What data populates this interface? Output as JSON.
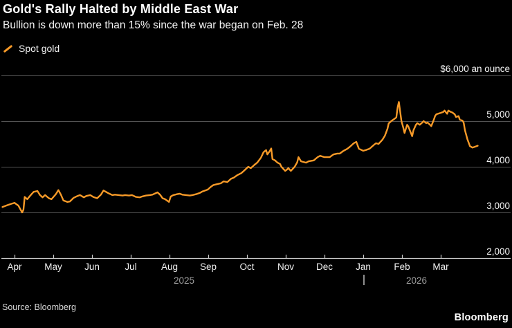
{
  "header": {
    "title": "Gold's Rally Halted by Middle East War",
    "subtitle": "Bullion is down more than 15% since the war began on Feb. 28"
  },
  "legend": {
    "label": "Spot gold"
  },
  "footer": {
    "source": "Source: Bloomberg",
    "brand": "Bloomberg"
  },
  "colors": {
    "background": "#000000",
    "line": "#F79A28",
    "grid": "#545454",
    "axis": "#C9C9C9",
    "title_text": "#FFFFFF",
    "year_text": "#9E9E9E"
  },
  "chart_data": {
    "type": "line",
    "title": "Gold's Rally Halted by Middle East War",
    "subtitle": "Bullion is down more than 15% since the war began on Feb. 28",
    "ylabel": "$6,000 an ounce",
    "y_range": [
      2000,
      6100
    ],
    "grid": true,
    "legend_position": "top-left",
    "y_ticks": [
      {
        "value": 2000,
        "label": "2,000"
      },
      {
        "value": 3000,
        "label": "3,000"
      },
      {
        "value": 4000,
        "label": "4,000"
      },
      {
        "value": 5000,
        "label": "5,000"
      },
      {
        "value": 6000,
        "label": "$6,000 an ounce"
      }
    ],
    "x_months": [
      "Apr",
      "May",
      "Jun",
      "Jul",
      "Aug",
      "Sep",
      "Oct",
      "Nov",
      "Dec",
      "Jan",
      "Feb",
      "Mar"
    ],
    "x_years": {
      "first": "2025",
      "second": "2026"
    },
    "series": [
      {
        "name": "Spot gold",
        "color": "#F79A28",
        "points": [
          [
            "2025-03-22",
            3120
          ],
          [
            "2025-03-26",
            3160
          ],
          [
            "2025-03-29",
            3190
          ],
          [
            "2025-04-01",
            3210
          ],
          [
            "2025-04-04",
            3150
          ],
          [
            "2025-04-07",
            3000
          ],
          [
            "2025-04-08",
            3060
          ],
          [
            "2025-04-09",
            3340
          ],
          [
            "2025-04-11",
            3290
          ],
          [
            "2025-04-14",
            3390
          ],
          [
            "2025-04-16",
            3450
          ],
          [
            "2025-04-19",
            3470
          ],
          [
            "2025-04-21",
            3380
          ],
          [
            "2025-04-23",
            3330
          ],
          [
            "2025-04-25",
            3380
          ],
          [
            "2025-04-28",
            3310
          ],
          [
            "2025-04-30",
            3290
          ],
          [
            "2025-05-03",
            3400
          ],
          [
            "2025-05-05",
            3490
          ],
          [
            "2025-05-07",
            3390
          ],
          [
            "2025-05-09",
            3260
          ],
          [
            "2025-05-12",
            3230
          ],
          [
            "2025-05-14",
            3240
          ],
          [
            "2025-05-17",
            3320
          ],
          [
            "2025-05-20",
            3360
          ],
          [
            "2025-05-22",
            3380
          ],
          [
            "2025-05-25",
            3330
          ],
          [
            "2025-05-27",
            3360
          ],
          [
            "2025-05-30",
            3380
          ],
          [
            "2025-06-02",
            3340
          ],
          [
            "2025-06-05",
            3310
          ],
          [
            "2025-06-08",
            3390
          ],
          [
            "2025-06-10",
            3480
          ],
          [
            "2025-06-12",
            3450
          ],
          [
            "2025-06-14",
            3420
          ],
          [
            "2025-06-17",
            3380
          ],
          [
            "2025-06-19",
            3390
          ],
          [
            "2025-06-22",
            3380
          ],
          [
            "2025-06-25",
            3370
          ],
          [
            "2025-06-27",
            3380
          ],
          [
            "2025-06-30",
            3370
          ],
          [
            "2025-07-02",
            3380
          ],
          [
            "2025-07-05",
            3340
          ],
          [
            "2025-07-08",
            3330
          ],
          [
            "2025-07-10",
            3350
          ],
          [
            "2025-07-13",
            3370
          ],
          [
            "2025-07-16",
            3380
          ],
          [
            "2025-07-18",
            3390
          ],
          [
            "2025-07-22",
            3440
          ],
          [
            "2025-07-24",
            3390
          ],
          [
            "2025-07-26",
            3310
          ],
          [
            "2025-07-28",
            3290
          ],
          [
            "2025-07-31",
            3230
          ],
          [
            "2025-08-02",
            3350
          ],
          [
            "2025-08-04",
            3380
          ],
          [
            "2025-08-07",
            3400
          ],
          [
            "2025-08-09",
            3410
          ],
          [
            "2025-08-11",
            3390
          ],
          [
            "2025-08-14",
            3380
          ],
          [
            "2025-08-17",
            3370
          ],
          [
            "2025-08-19",
            3380
          ],
          [
            "2025-08-22",
            3400
          ],
          [
            "2025-08-25",
            3430
          ],
          [
            "2025-08-27",
            3460
          ],
          [
            "2025-08-31",
            3500
          ],
          [
            "2025-09-03",
            3560
          ],
          [
            "2025-09-05",
            3600
          ],
          [
            "2025-09-08",
            3620
          ],
          [
            "2025-09-11",
            3640
          ],
          [
            "2025-09-13",
            3680
          ],
          [
            "2025-09-16",
            3665
          ],
          [
            "2025-09-19",
            3740
          ],
          [
            "2025-09-21",
            3760
          ],
          [
            "2025-09-24",
            3820
          ],
          [
            "2025-09-27",
            3860
          ],
          [
            "2025-09-29",
            3910
          ],
          [
            "2025-10-02",
            4000
          ],
          [
            "2025-10-04",
            3970
          ],
          [
            "2025-10-07",
            4045
          ],
          [
            "2025-10-09",
            4090
          ],
          [
            "2025-10-12",
            4200
          ],
          [
            "2025-10-14",
            4320
          ],
          [
            "2025-10-16",
            4365
          ],
          [
            "2025-10-17",
            4270
          ],
          [
            "2025-10-19",
            4350
          ],
          [
            "2025-10-20",
            4400
          ],
          [
            "2025-10-21",
            4170
          ],
          [
            "2025-10-23",
            4140
          ],
          [
            "2025-10-25",
            4090
          ],
          [
            "2025-10-27",
            4060
          ],
          [
            "2025-10-28",
            4000
          ],
          [
            "2025-10-31",
            3910
          ],
          [
            "2025-11-02",
            3940
          ],
          [
            "2025-11-03",
            3970
          ],
          [
            "2025-11-05",
            3910
          ],
          [
            "2025-11-08",
            4000
          ],
          [
            "2025-11-10",
            4100
          ],
          [
            "2025-11-11",
            4210
          ],
          [
            "2025-11-13",
            4120
          ],
          [
            "2025-11-17",
            4090
          ],
          [
            "2025-11-19",
            4120
          ],
          [
            "2025-11-23",
            4140
          ],
          [
            "2025-11-26",
            4210
          ],
          [
            "2025-11-28",
            4240
          ],
          [
            "2025-12-01",
            4210
          ],
          [
            "2025-12-05",
            4210
          ],
          [
            "2025-12-08",
            4270
          ],
          [
            "2025-12-11",
            4290
          ],
          [
            "2025-12-13",
            4290
          ],
          [
            "2025-12-16",
            4350
          ],
          [
            "2025-12-19",
            4395
          ],
          [
            "2025-12-21",
            4440
          ],
          [
            "2025-12-24",
            4515
          ],
          [
            "2025-12-26",
            4545
          ],
          [
            "2025-12-28",
            4395
          ],
          [
            "2026-01-01",
            4350
          ],
          [
            "2026-01-03",
            4365
          ],
          [
            "2026-01-06",
            4395
          ],
          [
            "2026-01-09",
            4470
          ],
          [
            "2026-01-11",
            4515
          ],
          [
            "2026-01-13",
            4500
          ],
          [
            "2026-01-16",
            4590
          ],
          [
            "2026-01-18",
            4680
          ],
          [
            "2026-01-20",
            4830
          ],
          [
            "2026-01-21",
            4950
          ],
          [
            "2026-01-23",
            5000
          ],
          [
            "2026-01-25",
            5040
          ],
          [
            "2026-01-27",
            5080
          ],
          [
            "2026-01-28",
            5300
          ],
          [
            "2026-01-29",
            5420
          ],
          [
            "2026-01-31",
            5000
          ],
          [
            "2026-02-02",
            4860
          ],
          [
            "2026-02-03",
            4740
          ],
          [
            "2026-02-05",
            4920
          ],
          [
            "2026-02-06",
            4880
          ],
          [
            "2026-02-08",
            4740
          ],
          [
            "2026-02-09",
            4670
          ],
          [
            "2026-02-10",
            4800
          ],
          [
            "2026-02-12",
            4920
          ],
          [
            "2026-02-13",
            4955
          ],
          [
            "2026-02-15",
            4920
          ],
          [
            "2026-02-17",
            4970
          ],
          [
            "2026-02-18",
            5000
          ],
          [
            "2026-02-20",
            4955
          ],
          [
            "2026-02-21",
            4970
          ],
          [
            "2026-02-23",
            4920
          ],
          [
            "2026-02-24",
            4890
          ],
          [
            "2026-02-26",
            5030
          ],
          [
            "2026-02-27",
            5110
          ],
          [
            "2026-02-28",
            5150
          ],
          [
            "2026-03-01",
            5180
          ],
          [
            "2026-03-03",
            5200
          ],
          [
            "2026-03-04",
            5230
          ],
          [
            "2026-03-06",
            5160
          ],
          [
            "2026-03-07",
            5230
          ],
          [
            "2026-03-09",
            5200
          ],
          [
            "2026-03-10",
            5190
          ],
          [
            "2026-03-12",
            5150
          ],
          [
            "2026-03-13",
            5090
          ],
          [
            "2026-03-15",
            5110
          ],
          [
            "2026-03-16",
            5030
          ],
          [
            "2026-03-18",
            5010
          ],
          [
            "2026-03-19",
            4970
          ],
          [
            "2026-03-20",
            4800
          ],
          [
            "2026-03-22",
            4600
          ],
          [
            "2026-03-24",
            4450
          ],
          [
            "2026-03-26",
            4420
          ],
          [
            "2026-03-28",
            4440
          ],
          [
            "2026-03-30",
            4460
          ]
        ]
      }
    ]
  }
}
